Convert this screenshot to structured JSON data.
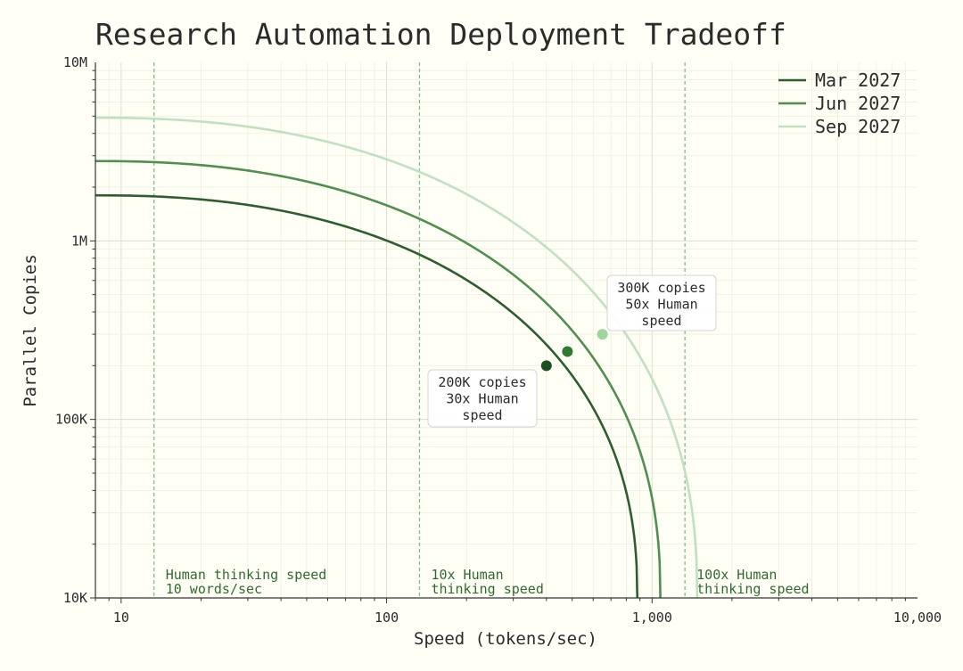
{
  "chart_data": {
    "type": "line",
    "title": "Research Automation Deployment Tradeoff",
    "xlabel": "Speed (tokens/sec)",
    "ylabel": "Parallel Copies",
    "x_scale": "log",
    "y_scale": "log",
    "xlim": [
      8,
      10000
    ],
    "ylim": [
      10000,
      10000000
    ],
    "x_ticks": [
      {
        "value": 10,
        "label": "10"
      },
      {
        "value": 100,
        "label": "100"
      },
      {
        "value": 1000,
        "label": "1,000"
      },
      {
        "value": 10000,
        "label": "10,000"
      }
    ],
    "y_ticks": [
      {
        "value": 10000,
        "label": "10K"
      },
      {
        "value": 100000,
        "label": "100K"
      },
      {
        "value": 1000000,
        "label": "1M"
      },
      {
        "value": 10000000,
        "label": "10M"
      }
    ],
    "grid": true,
    "legend_position": "top-right",
    "series": [
      {
        "name": "Mar 2027",
        "color": "#2e5e2e",
        "x_max": 880,
        "y_max": 1800000,
        "marker": {
          "x": 400,
          "y": 200000,
          "color": "#1e4d1e"
        }
      },
      {
        "name": "Jun 2027",
        "color": "#4f8f4f",
        "x_max": 1075,
        "y_max": 2800000,
        "marker": {
          "x": 480,
          "y": 240000,
          "color": "#2f7a2f"
        }
      },
      {
        "name": "Sep 2027",
        "color": "#bfe1bf",
        "x_max": 1480,
        "y_max": 4900000,
        "marker": {
          "x": 650,
          "y": 300000,
          "color": "#9ed49e"
        }
      }
    ],
    "reference_lines": [
      {
        "x": 13.3,
        "label_lines": [
          "Human thinking speed",
          "10 words/sec"
        ]
      },
      {
        "x": 133,
        "label_lines": [
          "10x Human",
          "thinking speed"
        ]
      },
      {
        "x": 1330,
        "label_lines": [
          "100x Human",
          "thinking speed"
        ]
      }
    ],
    "callouts": [
      {
        "lines": [
          "200K copies",
          "30x Human",
          "speed"
        ],
        "x": 400,
        "y": 200000
      },
      {
        "lines": [
          "300K copies",
          "50x Human",
          "speed"
        ],
        "x": 650,
        "y": 300000
      }
    ]
  }
}
